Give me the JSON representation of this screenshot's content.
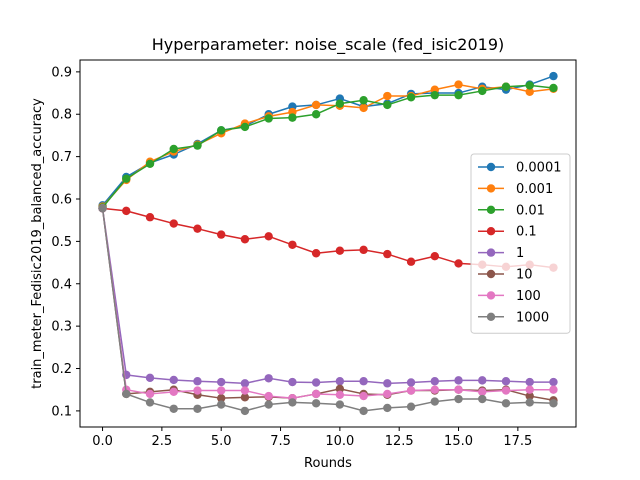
{
  "chart_data": {
    "type": "line",
    "title": "Hyperparameter: noise_scale (fed_isic2019)",
    "xlabel": "Rounds",
    "ylabel": "train_meter_Fedisic2019_balanced_accuracy",
    "xlim": [
      -0.95,
      19.95
    ],
    "ylim": [
      0.062,
      0.928
    ],
    "x_ticks": [
      0.0,
      2.5,
      5.0,
      7.5,
      10.0,
      12.5,
      15.0,
      17.5
    ],
    "x_tick_labels": [
      "0.0",
      "2.5",
      "5.0",
      "7.5",
      "10.0",
      "12.5",
      "15.0",
      "17.5"
    ],
    "y_ticks": [
      0.1,
      0.2,
      0.3,
      0.4,
      0.5,
      0.6,
      0.7,
      0.8,
      0.9
    ],
    "y_tick_labels": [
      "0.1",
      "0.2",
      "0.3",
      "0.4",
      "0.5",
      "0.6",
      "0.7",
      "0.8",
      "0.9"
    ],
    "grid": false,
    "legend_position": "center-right",
    "x": [
      0,
      1,
      2,
      3,
      4,
      5,
      6,
      7,
      8,
      9,
      10,
      11,
      12,
      13,
      14,
      15,
      16,
      17,
      18,
      19
    ],
    "series": [
      {
        "name": "0.0001",
        "color": "#1f77b4",
        "values": [
          0.585,
          0.652,
          0.685,
          0.705,
          0.73,
          0.762,
          0.772,
          0.8,
          0.818,
          0.822,
          0.837,
          0.818,
          0.825,
          0.848,
          0.85,
          0.85,
          0.865,
          0.858,
          0.87,
          0.89
        ]
      },
      {
        "name": "0.001",
        "color": "#ff7f0e",
        "values": [
          0.582,
          0.645,
          0.688,
          0.712,
          0.728,
          0.755,
          0.778,
          0.795,
          0.805,
          0.822,
          0.82,
          0.815,
          0.843,
          0.843,
          0.858,
          0.87,
          0.86,
          0.865,
          0.853,
          0.86
        ]
      },
      {
        "name": "0.01",
        "color": "#2ca02c",
        "values": [
          0.58,
          0.648,
          0.683,
          0.718,
          0.726,
          0.762,
          0.77,
          0.79,
          0.792,
          0.8,
          0.825,
          0.833,
          0.822,
          0.84,
          0.845,
          0.845,
          0.855,
          0.865,
          0.868,
          0.862
        ]
      },
      {
        "name": "0.1",
        "color": "#d62728",
        "values": [
          0.578,
          0.572,
          0.557,
          0.542,
          0.53,
          0.516,
          0.505,
          0.512,
          0.492,
          0.472,
          0.478,
          0.48,
          0.47,
          0.452,
          0.465,
          0.448,
          0.445,
          0.44,
          0.445,
          0.438
        ]
      },
      {
        "name": "1",
        "color": "#9467bd",
        "values": [
          0.578,
          0.185,
          0.178,
          0.173,
          0.17,
          0.168,
          0.165,
          0.177,
          0.168,
          0.167,
          0.17,
          0.17,
          0.165,
          0.167,
          0.17,
          0.172,
          0.172,
          0.17,
          0.168,
          0.168
        ]
      },
      {
        "name": "10",
        "color": "#8c564b",
        "values": [
          0.578,
          0.14,
          0.145,
          0.15,
          0.138,
          0.13,
          0.132,
          0.133,
          0.13,
          0.14,
          0.152,
          0.14,
          0.138,
          0.148,
          0.148,
          0.15,
          0.148,
          0.15,
          0.135,
          0.125
        ]
      },
      {
        "name": "100",
        "color": "#e377c2",
        "values": [
          0.578,
          0.15,
          0.14,
          0.145,
          0.148,
          0.148,
          0.148,
          0.135,
          0.13,
          0.14,
          0.138,
          0.135,
          0.14,
          0.148,
          0.15,
          0.15,
          0.145,
          0.148,
          0.15,
          0.15
        ]
      },
      {
        "name": "1000",
        "color": "#7f7f7f",
        "values": [
          0.578,
          0.14,
          0.12,
          0.105,
          0.105,
          0.115,
          0.1,
          0.115,
          0.12,
          0.118,
          0.115,
          0.1,
          0.107,
          0.11,
          0.122,
          0.128,
          0.128,
          0.118,
          0.12,
          0.118
        ]
      }
    ]
  }
}
